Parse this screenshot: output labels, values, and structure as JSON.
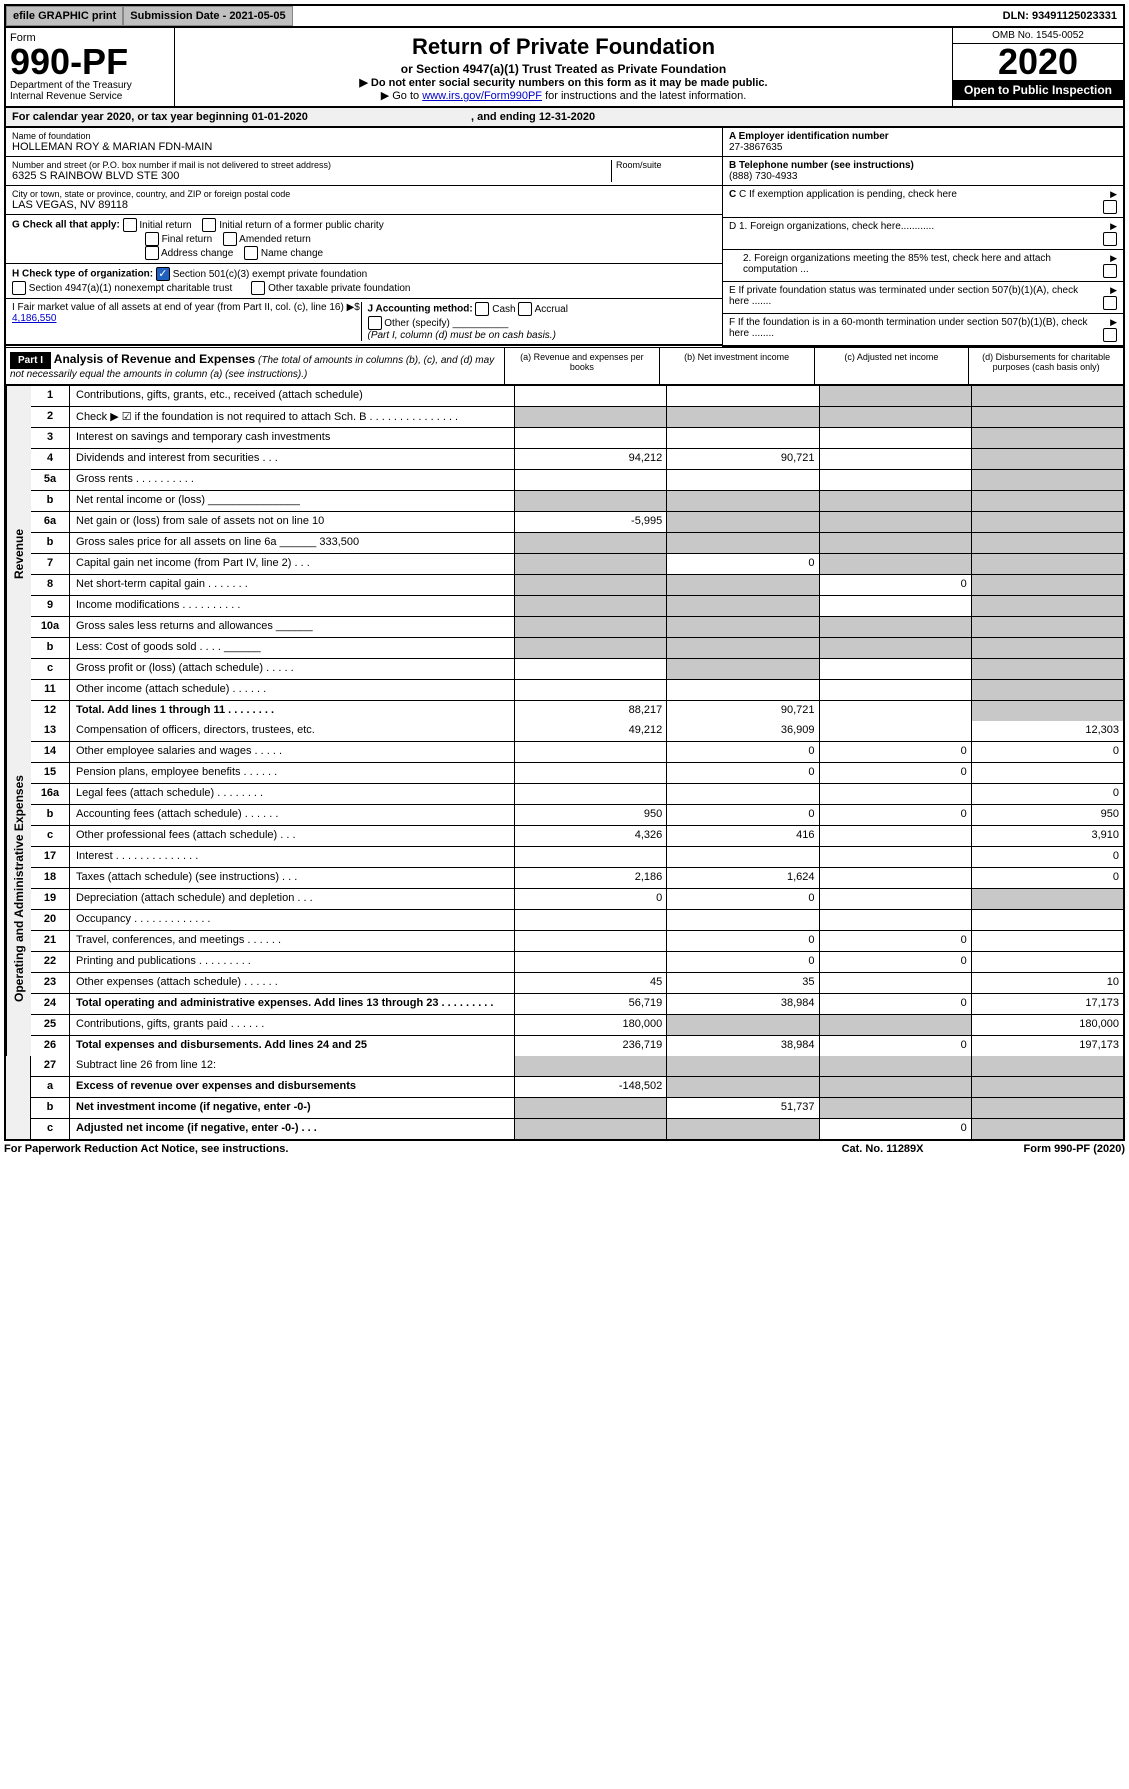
{
  "topbar": {
    "efile": "efile GRAPHIC print",
    "submission_label": "Submission Date - 2021-05-05",
    "dln": "DLN: 93491125023331"
  },
  "header": {
    "form_label": "Form",
    "form_number": "990-PF",
    "dept": "Department of the Treasury\nInternal Revenue Service",
    "title": "Return of Private Foundation",
    "subtitle": "or Section 4947(a)(1) Trust Treated as Private Foundation",
    "instr1": "▶ Do not enter social security numbers on this form as it may be made public.",
    "instr2_pre": "▶ Go to ",
    "instr2_link": "www.irs.gov/Form990PF",
    "instr2_post": " for instructions and the latest information.",
    "omb": "OMB No. 1545-0052",
    "year": "2020",
    "open": "Open to Public Inspection"
  },
  "cal_year": {
    "text": "For calendar year 2020, or tax year beginning 01-01-2020",
    "ending": ", and ending 12-31-2020"
  },
  "entity": {
    "name_label": "Name of foundation",
    "name": "HOLLEMAN ROY & MARIAN FDN-MAIN",
    "addr_label": "Number and street (or P.O. box number if mail is not delivered to street address)",
    "room_label": "Room/suite",
    "addr": "6325 S RAINBOW BLVD STE 300",
    "city_label": "City or town, state or province, country, and ZIP or foreign postal code",
    "city": "LAS VEGAS, NV  89118",
    "ein_label": "A Employer identification number",
    "ein": "27-3867635",
    "phone_label": "B Telephone number (see instructions)",
    "phone": "(888) 730-4933",
    "c_label": "C If exemption application is pending, check here",
    "d1": "D 1. Foreign organizations, check here............",
    "d2": "2. Foreign organizations meeting the 85% test, check here and attach computation ...",
    "e": "E  If private foundation status was terminated under section 507(b)(1)(A), check here .......",
    "f": "F  If the foundation is in a 60-month termination under section 507(b)(1)(B), check here ........"
  },
  "checks": {
    "g_label": "G Check all that apply:",
    "initial": "Initial return",
    "initial_former": "Initial return of a former public charity",
    "final": "Final return",
    "amended": "Amended return",
    "addr_change": "Address change",
    "name_change": "Name change",
    "h_label": "H Check type of organization:",
    "h_501c3": "Section 501(c)(3) exempt private foundation",
    "h_4947": "Section 4947(a)(1) nonexempt charitable trust",
    "h_other": "Other taxable private foundation",
    "i_label": "I Fair market value of all assets at end of year (from Part II, col. (c), line 16) ▶$",
    "i_value": "4,186,550",
    "j_label": "J Accounting method:",
    "j_cash": "Cash",
    "j_accrual": "Accrual",
    "j_other": "Other (specify)",
    "j_note": "(Part I, column (d) must be on cash basis.)"
  },
  "part1": {
    "label": "Part I",
    "title": "Analysis of Revenue and Expenses",
    "note": "(The total of amounts in columns (b), (c), and (d) may not necessarily equal the amounts in column (a) (see instructions).)",
    "col_a": "(a)   Revenue and expenses per books",
    "col_b": "(b)  Net investment income",
    "col_c": "(c)  Adjusted net income",
    "col_d": "(d)  Disbursements for charitable purposes (cash basis only)"
  },
  "sections": {
    "revenue": "Revenue",
    "expenses": "Operating and Administrative Expenses"
  },
  "lines": [
    {
      "n": "1",
      "d": "Contributions, gifts, grants, etc., received (attach schedule)",
      "a": "",
      "b": "",
      "c": "s",
      "dd": "s",
      "sec": "rev"
    },
    {
      "n": "2",
      "d": "Check ▶ ☑ if the foundation is not required to attach Sch. B  .  .  .  .  .  .  .  .  .  .  .  .  .  .  .",
      "a": "s",
      "b": "s",
      "c": "s",
      "dd": "s",
      "sec": "rev"
    },
    {
      "n": "3",
      "d": "Interest on savings and temporary cash investments",
      "a": "",
      "b": "",
      "c": "",
      "dd": "s",
      "sec": "rev"
    },
    {
      "n": "4",
      "d": "Dividends and interest from securities   .   .   .",
      "a": "94,212",
      "b": "90,721",
      "c": "",
      "dd": "s",
      "sec": "rev"
    },
    {
      "n": "5a",
      "d": "Gross rents   .   .   .   .   .   .   .   .   .   .",
      "a": "",
      "b": "",
      "c": "",
      "dd": "s",
      "sec": "rev"
    },
    {
      "n": "b",
      "d": "Net rental income or (loss)  _______________",
      "a": "s",
      "b": "s",
      "c": "s",
      "dd": "s",
      "sec": "rev"
    },
    {
      "n": "6a",
      "d": "Net gain or (loss) from sale of assets not on line 10",
      "a": "-5,995",
      "b": "s",
      "c": "s",
      "dd": "s",
      "sec": "rev"
    },
    {
      "n": "b",
      "d": "Gross sales price for all assets on line 6a ______ 333,500",
      "a": "s",
      "b": "s",
      "c": "s",
      "dd": "s",
      "sec": "rev"
    },
    {
      "n": "7",
      "d": "Capital gain net income (from Part IV, line 2)   .   .   .",
      "a": "s",
      "b": "0",
      "c": "s",
      "dd": "s",
      "sec": "rev"
    },
    {
      "n": "8",
      "d": "Net short-term capital gain   .   .   .   .   .   .   .",
      "a": "s",
      "b": "s",
      "c": "0",
      "dd": "s",
      "sec": "rev"
    },
    {
      "n": "9",
      "d": "Income modifications  .   .   .   .   .   .   .   .   .   .",
      "a": "s",
      "b": "s",
      "c": "",
      "dd": "s",
      "sec": "rev"
    },
    {
      "n": "10a",
      "d": "Gross sales less returns and allowances  ______",
      "a": "s",
      "b": "s",
      "c": "s",
      "dd": "s",
      "sec": "rev"
    },
    {
      "n": "b",
      "d": "Less: Cost of goods sold   .   .   .   .  ______",
      "a": "s",
      "b": "s",
      "c": "s",
      "dd": "s",
      "sec": "rev"
    },
    {
      "n": "c",
      "d": "Gross profit or (loss) (attach schedule)   .   .   .   .   .",
      "a": "",
      "b": "s",
      "c": "",
      "dd": "s",
      "sec": "rev"
    },
    {
      "n": "11",
      "d": "Other income (attach schedule)   .   .   .   .   .   .",
      "a": "",
      "b": "",
      "c": "",
      "dd": "s",
      "sec": "rev"
    },
    {
      "n": "12",
      "d": "Total. Add lines 1 through 11   .   .   .   .   .   .   .   .",
      "a": "88,217",
      "b": "90,721",
      "c": "",
      "dd": "s",
      "sec": "rev",
      "bold": true
    },
    {
      "n": "13",
      "d": "Compensation of officers, directors, trustees, etc.",
      "a": "49,212",
      "b": "36,909",
      "c": "",
      "dd": "12,303",
      "sec": "exp"
    },
    {
      "n": "14",
      "d": "Other employee salaries and wages   .   .   .   .   .",
      "a": "",
      "b": "0",
      "c": "0",
      "dd": "0",
      "sec": "exp"
    },
    {
      "n": "15",
      "d": "Pension plans, employee benefits   .   .   .   .   .   .",
      "a": "",
      "b": "0",
      "c": "0",
      "dd": "",
      "sec": "exp"
    },
    {
      "n": "16a",
      "d": "Legal fees (attach schedule)   .   .   .   .   .   .   .   .",
      "a": "",
      "b": "",
      "c": "",
      "dd": "0",
      "sec": "exp"
    },
    {
      "n": "b",
      "d": "Accounting fees (attach schedule)   .   .   .   .   .   .",
      "a": "950",
      "b": "0",
      "c": "0",
      "dd": "950",
      "sec": "exp"
    },
    {
      "n": "c",
      "d": "Other professional fees (attach schedule)   .   .   .",
      "a": "4,326",
      "b": "416",
      "c": "",
      "dd": "3,910",
      "sec": "exp"
    },
    {
      "n": "17",
      "d": "Interest   .   .   .   .   .   .   .   .   .   .   .   .   .   .",
      "a": "",
      "b": "",
      "c": "",
      "dd": "0",
      "sec": "exp"
    },
    {
      "n": "18",
      "d": "Taxes (attach schedule) (see instructions)   .   .   .",
      "a": "2,186",
      "b": "1,624",
      "c": "",
      "dd": "0",
      "sec": "exp"
    },
    {
      "n": "19",
      "d": "Depreciation (attach schedule) and depletion   .   .   .",
      "a": "0",
      "b": "0",
      "c": "",
      "dd": "s",
      "sec": "exp"
    },
    {
      "n": "20",
      "d": "Occupancy  .   .   .   .   .   .   .   .   .   .   .   .   .",
      "a": "",
      "b": "",
      "c": "",
      "dd": "",
      "sec": "exp"
    },
    {
      "n": "21",
      "d": "Travel, conferences, and meetings  .   .   .   .   .   .",
      "a": "",
      "b": "0",
      "c": "0",
      "dd": "",
      "sec": "exp"
    },
    {
      "n": "22",
      "d": "Printing and publications  .   .   .   .   .   .   .   .   .",
      "a": "",
      "b": "0",
      "c": "0",
      "dd": "",
      "sec": "exp"
    },
    {
      "n": "23",
      "d": "Other expenses (attach schedule)   .   .   .   .   .   .",
      "a": "45",
      "b": "35",
      "c": "",
      "dd": "10",
      "sec": "exp"
    },
    {
      "n": "24",
      "d": "Total operating and administrative expenses. Add lines 13 through 23   .   .   .   .   .   .   .   .   .",
      "a": "56,719",
      "b": "38,984",
      "c": "0",
      "dd": "17,173",
      "sec": "exp",
      "bold": true
    },
    {
      "n": "25",
      "d": "Contributions, gifts, grants paid   .   .   .   .   .   .",
      "a": "180,000",
      "b": "s",
      "c": "s",
      "dd": "180,000",
      "sec": "exp"
    },
    {
      "n": "26",
      "d": "Total expenses and disbursements. Add lines 24 and 25",
      "a": "236,719",
      "b": "38,984",
      "c": "0",
      "dd": "197,173",
      "sec": "exp",
      "bold": true
    },
    {
      "n": "27",
      "d": "Subtract line 26 from line 12:",
      "a": "s",
      "b": "s",
      "c": "s",
      "dd": "s",
      "sec": "none"
    },
    {
      "n": "a",
      "d": "Excess of revenue over expenses and disbursements",
      "a": "-148,502",
      "b": "s",
      "c": "s",
      "dd": "s",
      "sec": "none",
      "bold": true
    },
    {
      "n": "b",
      "d": "Net investment income (if negative, enter -0-)",
      "a": "s",
      "b": "51,737",
      "c": "s",
      "dd": "s",
      "sec": "none",
      "bold": true
    },
    {
      "n": "c",
      "d": "Adjusted net income (if negative, enter -0-)   .   .   .",
      "a": "s",
      "b": "s",
      "c": "0",
      "dd": "s",
      "sec": "none",
      "bold": true
    }
  ],
  "footer": {
    "left": "For Paperwork Reduction Act Notice, see instructions.",
    "mid": "Cat. No. 11289X",
    "right": "Form 990-PF (2020)"
  }
}
